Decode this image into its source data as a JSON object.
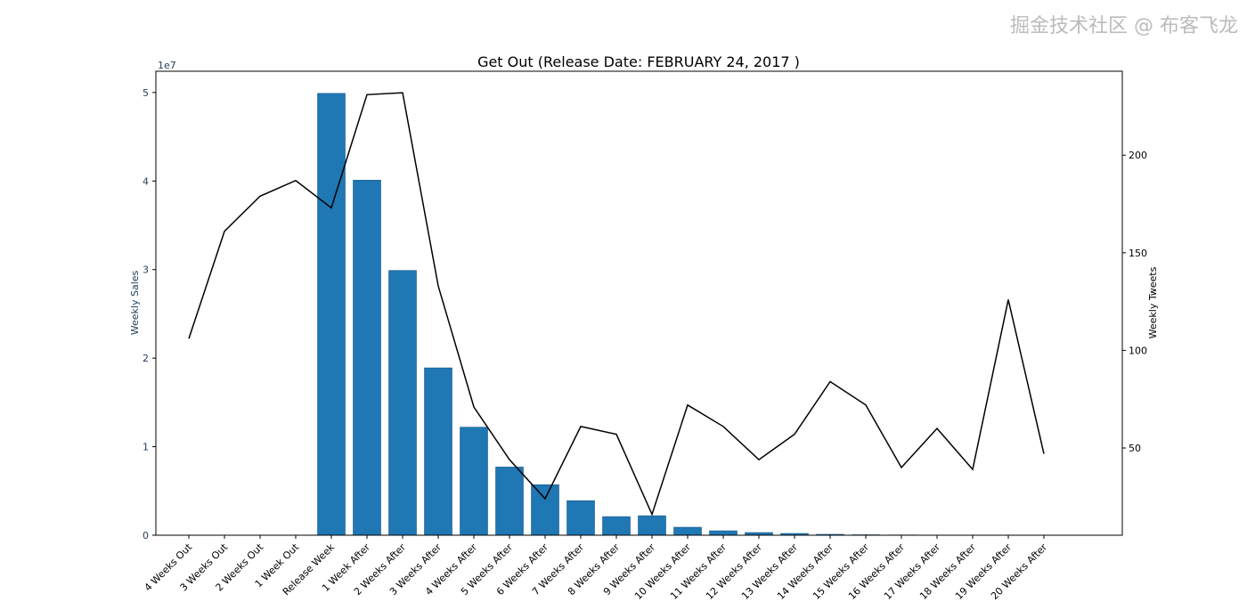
{
  "chart_data": {
    "type": "bar+line",
    "title": "Get Out (Release Date: FEBRUARY 24, 2017 )",
    "categories": [
      "4 Weeks Out",
      "3 Weeks Out",
      "2 Weeks Out",
      "1 Week Out",
      "Release Week",
      "1 Week After",
      "2 Weeks After",
      "3 Weeks After",
      "4 Weeks After",
      "5 Weeks After",
      "6 Weeks After",
      "7 Weeks After",
      "8 Weeks After",
      "9 Weeks After",
      "10 Weeks After",
      "11 Weeks After",
      "12 Weeks After",
      "13 Weeks After",
      "14 Weeks After",
      "15 Weeks After",
      "16 Weeks After",
      "17 Weeks After",
      "18 Weeks After",
      "19 Weeks After",
      "20 Weeks After"
    ],
    "bars": {
      "ylabel": "Weekly Sales",
      "axis": "left",
      "scale_label": "1e7",
      "values": [
        0,
        0,
        0,
        0,
        49900000,
        40100000,
        29900000,
        18900000,
        12200000,
        7700000,
        5700000,
        3900000,
        2100000,
        2200000,
        900000,
        500000,
        300000,
        200000,
        100000,
        50000,
        30000,
        20000,
        10000,
        5000,
        2000
      ],
      "ylim": [
        0,
        52400000
      ],
      "yticks": [
        0,
        1,
        2,
        3,
        4,
        5
      ],
      "color": "#1f77b4"
    },
    "line": {
      "ylabel": "Weekly Tweets",
      "axis": "right",
      "values": [
        106,
        161,
        179,
        187,
        173,
        231,
        232,
        133,
        71,
        44,
        24,
        61,
        57,
        16,
        72,
        61,
        44,
        57,
        84,
        72,
        40,
        60,
        39,
        126,
        47
      ],
      "ylim": [
        5.3,
        243
      ],
      "yticks": [
        50,
        100,
        150,
        200
      ],
      "color": "#000000"
    },
    "grid": false,
    "legend": "none"
  },
  "watermark": "掘金技术社区 @ 布客飞龙"
}
